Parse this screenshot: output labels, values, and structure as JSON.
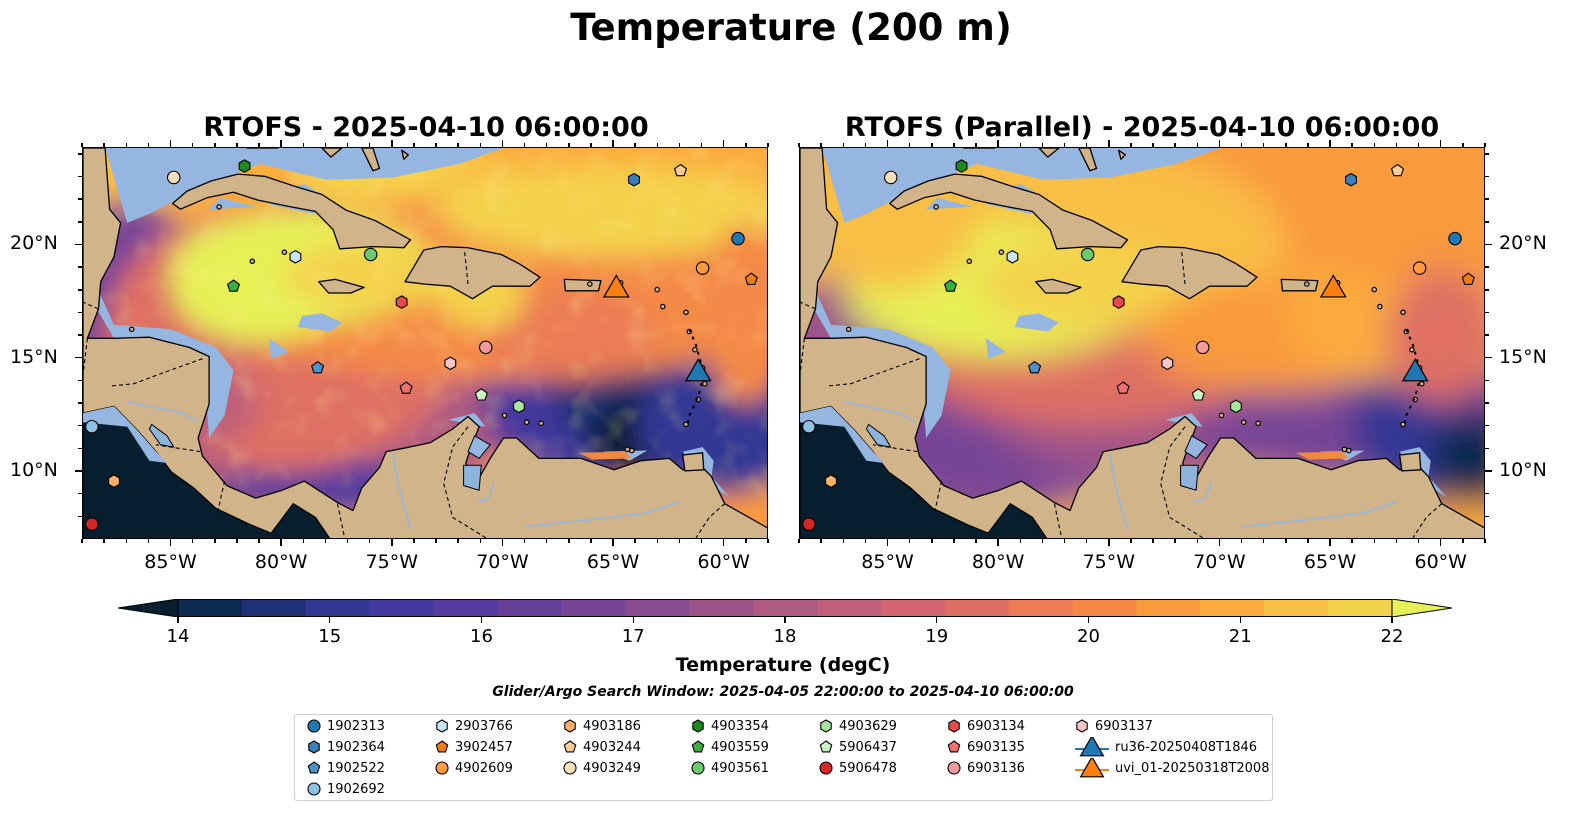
{
  "figure": {
    "title": "Temperature (200 m)"
  },
  "panels": [
    {
      "id": "left",
      "title": "RTOFS - 2025-04-10 06:00:00",
      "variant": "rtofs"
    },
    {
      "id": "right",
      "title": "RTOFS (Parallel) - 2025-04-10 06:00:00",
      "variant": "parallel"
    }
  ],
  "axes": {
    "lon_ticks": [
      "85°W",
      "80°W",
      "75°W",
      "70°W",
      "65°W",
      "60°W"
    ],
    "lat_ticks": [
      "20°N",
      "15°N",
      "10°N"
    ],
    "lon_range": [
      -89,
      -58
    ],
    "lat_range": [
      7,
      24.3
    ]
  },
  "colorbar": {
    "title": "Temperature (degC)",
    "min": 14,
    "max": 22,
    "ticks": [
      "14",
      "15",
      "16",
      "17",
      "18",
      "19",
      "20",
      "21",
      "22"
    ],
    "colors": [
      "#071e2e",
      "#0d2a4f",
      "#1f3275",
      "#323894",
      "#43399e",
      "#553c9e",
      "#653f9a",
      "#784596",
      "#8a4c90",
      "#9c538a",
      "#ae5a82",
      "#c06079",
      "#d1666e",
      "#df6f63",
      "#eb7c55",
      "#f48a46",
      "#f99a3d",
      "#fbab3e",
      "#f9be45",
      "#f4d24c",
      "#e6f157"
    ],
    "extend": "both"
  },
  "search_window": "Glider/Argo Search Window: 2025-04-05 22:00:00 to 2025-04-10 06:00:00",
  "legend": [
    {
      "label": "1902313",
      "marker": "circle",
      "color": "#1f77b4"
    },
    {
      "label": "1902364",
      "marker": "hexagon",
      "color": "#3a7fbb"
    },
    {
      "label": "1902522",
      "marker": "pentagon",
      "color": "#4c93cc"
    },
    {
      "label": "1902692",
      "marker": "circle",
      "color": "#8ec0e6"
    },
    {
      "label": "2903766",
      "marker": "hexagon",
      "color": "#c8e6f7"
    },
    {
      "label": "3902457",
      "marker": "pentagon",
      "color": "#f07d12"
    },
    {
      "label": "4902609",
      "marker": "circle",
      "color": "#ff9b3c"
    },
    {
      "label": "4903186",
      "marker": "hexagon",
      "color": "#ffb066"
    },
    {
      "label": "4903244",
      "marker": "pentagon",
      "color": "#ffcd93"
    },
    {
      "label": "4903249",
      "marker": "circle",
      "color": "#ffe0bd"
    },
    {
      "label": "4903354",
      "marker": "hexagon",
      "color": "#1d8a1d"
    },
    {
      "label": "4903559",
      "marker": "pentagon",
      "color": "#3cae3c"
    },
    {
      "label": "4903561",
      "marker": "circle",
      "color": "#6cca6c"
    },
    {
      "label": "4903629",
      "marker": "hexagon",
      "color": "#a6e6a0"
    },
    {
      "label": "5906437",
      "marker": "pentagon",
      "color": "#ccf5c6"
    },
    {
      "label": "5906478",
      "marker": "circle",
      "color": "#d62728"
    },
    {
      "label": "6903134",
      "marker": "hexagon",
      "color": "#e8494a"
    },
    {
      "label": "6903135",
      "marker": "pentagon",
      "color": "#f07070"
    },
    {
      "label": "6903136",
      "marker": "circle",
      "color": "#f59a9a"
    },
    {
      "label": "6903137",
      "marker": "hexagon",
      "color": "#fbc6c6"
    },
    {
      "label": "ru36-20250408T1846",
      "marker": "triangle",
      "color": "#1f77b4"
    },
    {
      "label": "uvi_01-20250318T2008",
      "marker": "triangle",
      "color": "#ff7f0e"
    }
  ],
  "floats": [
    {
      "id": "1902313",
      "lon": -59.4,
      "lat": 20.3
    },
    {
      "id": "1902364",
      "lon": -64.1,
      "lat": 22.9
    },
    {
      "id": "1902522",
      "lon": -78.4,
      "lat": 14.6
    },
    {
      "id": "1902692",
      "lon": -88.6,
      "lat": 12.0
    },
    {
      "id": "2903766",
      "lon": -79.4,
      "lat": 19.5
    },
    {
      "id": "3902457",
      "lon": -58.8,
      "lat": 18.5
    },
    {
      "id": "4902609",
      "lon": -61.0,
      "lat": 19.0
    },
    {
      "id": "4903186",
      "lon": -87.6,
      "lat": 9.6
    },
    {
      "id": "4903244",
      "lon": -62.0,
      "lat": 23.3
    },
    {
      "id": "4903249",
      "lon": -84.9,
      "lat": 23.0
    },
    {
      "id": "4903354",
      "lon": -81.7,
      "lat": 23.5
    },
    {
      "id": "4903559",
      "lon": -82.2,
      "lat": 18.2
    },
    {
      "id": "4903561",
      "lon": -76.0,
      "lat": 19.6
    },
    {
      "id": "4903629",
      "lon": -69.3,
      "lat": 12.9
    },
    {
      "id": "5906437",
      "lon": -71.0,
      "lat": 13.4
    },
    {
      "id": "5906478",
      "lon": -88.6,
      "lat": 7.7
    },
    {
      "id": "6903134",
      "lon": -74.6,
      "lat": 17.5
    },
    {
      "id": "6903135",
      "lon": -74.4,
      "lat": 13.7
    },
    {
      "id": "6903136",
      "lon": -70.8,
      "lat": 15.5
    },
    {
      "id": "6903137",
      "lon": -72.4,
      "lat": 14.8
    },
    {
      "id": "ru36-20250408T1846",
      "lon": -61.2,
      "lat": 14.4
    },
    {
      "id": "uvi_01-20250318T2008",
      "lon": -64.9,
      "lat": 18.1
    }
  ]
}
